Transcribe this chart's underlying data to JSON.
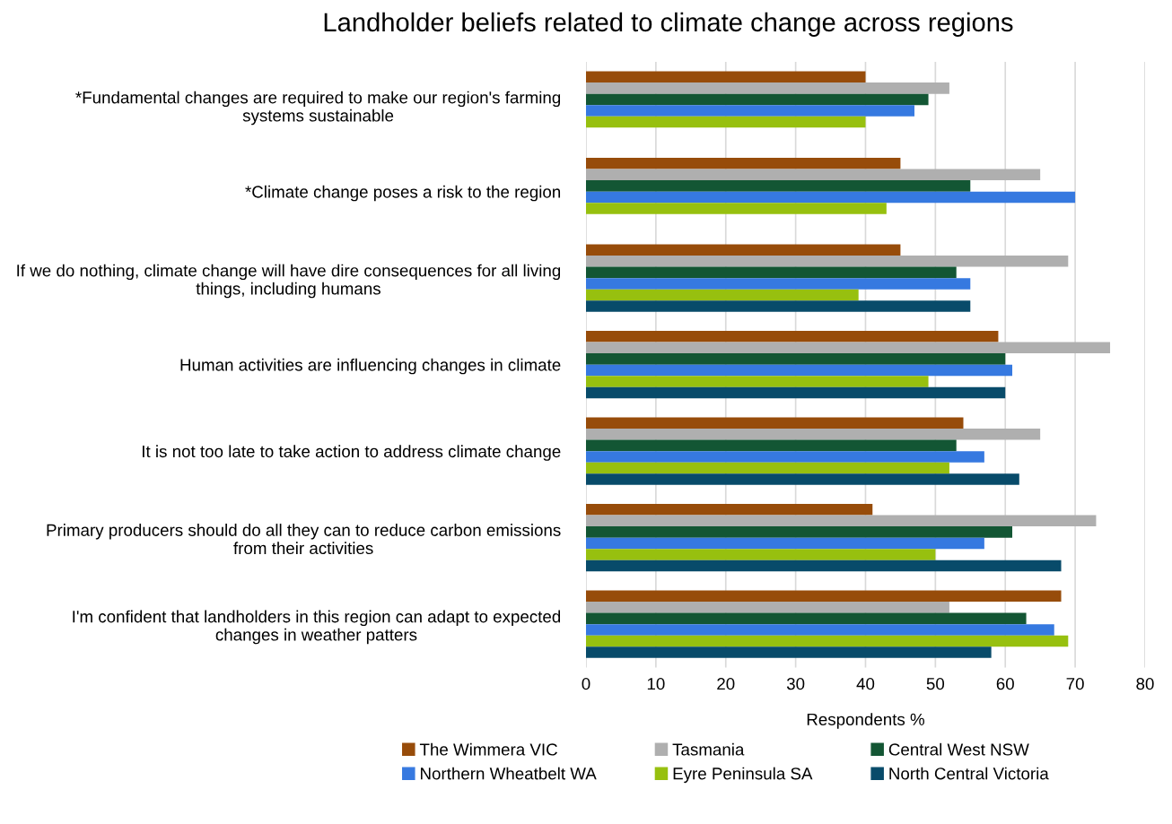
{
  "chart_data": {
    "type": "bar",
    "orientation": "horizontal",
    "title": "Landholder beliefs related to climate change across regions",
    "xlabel": "Respondents %",
    "categories": [
      "*Fundamental changes are required to make our region's farming systems sustainable",
      "*Climate change poses a risk to the region",
      "If we do nothing, climate change will have dire consequences for all living things, including humans",
      "Human activities are influencing changes in climate",
      "It is not too late to take action to address climate change",
      "Primary producers should do all they can to reduce carbon emissions from their activities",
      "I'm confident that landholders in this region can adapt to expected changes in weather patters"
    ],
    "series": [
      {
        "name": "The Wimmera VIC",
        "color": "#974c0a",
        "values": [
          40,
          45,
          45,
          59,
          54,
          41,
          68
        ]
      },
      {
        "name": "Tasmania",
        "color": "#afafaf",
        "values": [
          52,
          65,
          69,
          75,
          65,
          73,
          52
        ]
      },
      {
        "name": "Central West NSW",
        "color": "#135634",
        "values": [
          49,
          55,
          53,
          60,
          53,
          61,
          63
        ]
      },
      {
        "name": "Northern Wheatbelt WA",
        "color": "#3679e0",
        "values": [
          47,
          70,
          55,
          61,
          57,
          57,
          67
        ]
      },
      {
        "name": "Eyre Peninsula SA",
        "color": "#97c00f",
        "values": [
          40,
          43,
          39,
          49,
          52,
          50,
          69
        ]
      },
      {
        "name": "North Central Victoria",
        "color": "#084b6a",
        "values": [
          null,
          null,
          55,
          60,
          62,
          68,
          58
        ]
      }
    ],
    "xlim": [
      0,
      80
    ],
    "xticks": [
      0,
      10,
      20,
      30,
      40,
      50,
      60,
      70,
      80
    ],
    "grid": "x",
    "legend": "bottom"
  }
}
